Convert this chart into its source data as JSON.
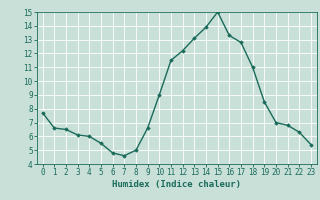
{
  "x": [
    0,
    1,
    2,
    3,
    4,
    5,
    6,
    7,
    8,
    9,
    10,
    11,
    12,
    13,
    14,
    15,
    16,
    17,
    18,
    19,
    20,
    21,
    22,
    23
  ],
  "y": [
    7.7,
    6.6,
    6.5,
    6.1,
    6.0,
    5.5,
    4.8,
    4.6,
    5.0,
    6.6,
    9.0,
    11.5,
    12.2,
    13.1,
    13.9,
    15.0,
    13.3,
    12.8,
    11.0,
    8.5,
    7.0,
    6.8,
    6.3,
    5.4
  ],
  "xlabel": "Humidex (Indice chaleur)",
  "ylim": [
    4,
    15
  ],
  "xlim": [
    -0.5,
    23.5
  ],
  "yticks": [
    4,
    5,
    6,
    7,
    8,
    9,
    10,
    11,
    12,
    13,
    14,
    15
  ],
  "xticks": [
    0,
    1,
    2,
    3,
    4,
    5,
    6,
    7,
    8,
    9,
    10,
    11,
    12,
    13,
    14,
    15,
    16,
    17,
    18,
    19,
    20,
    21,
    22,
    23
  ],
  "line_color": "#1a6b5a",
  "marker": "D",
  "marker_size": 1.8,
  "line_width": 1.0,
  "bg_color": "#c8e0d8",
  "grid_color": "#ffffff",
  "label_fontsize": 6.5,
  "tick_fontsize": 5.5
}
